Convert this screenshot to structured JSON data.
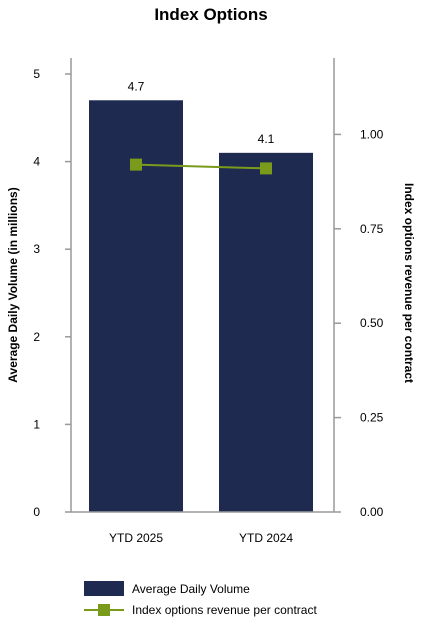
{
  "chart_data": {
    "type": "bar",
    "title": "Index Options",
    "categories": [
      "YTD 2025",
      "YTD 2024"
    ],
    "series": [
      {
        "name": "Average Daily Volume",
        "type": "bar",
        "axis": "left",
        "color": "#1f2a50",
        "values": [
          4.7,
          4.1
        ],
        "labels": [
          "4.7",
          "4.1"
        ]
      },
      {
        "name": "Index options revenue per contract",
        "type": "line",
        "axis": "right",
        "color": "#7a9a1c",
        "values": [
          0.92,
          0.91
        ]
      }
    ],
    "ylabel": "Average Daily Volume (in millions)",
    "ylabel_right": "Index options revenue per contract",
    "ylim": [
      0,
      5
    ],
    "ylim_right": [
      0,
      1.16
    ],
    "yticks": [
      "0",
      "1",
      "2",
      "3",
      "4",
      "5"
    ],
    "yticks_right": [
      "0.00",
      "0.25",
      "0.50",
      "0.75",
      "1.00"
    ],
    "grid": false,
    "legend_position": "bottom"
  }
}
